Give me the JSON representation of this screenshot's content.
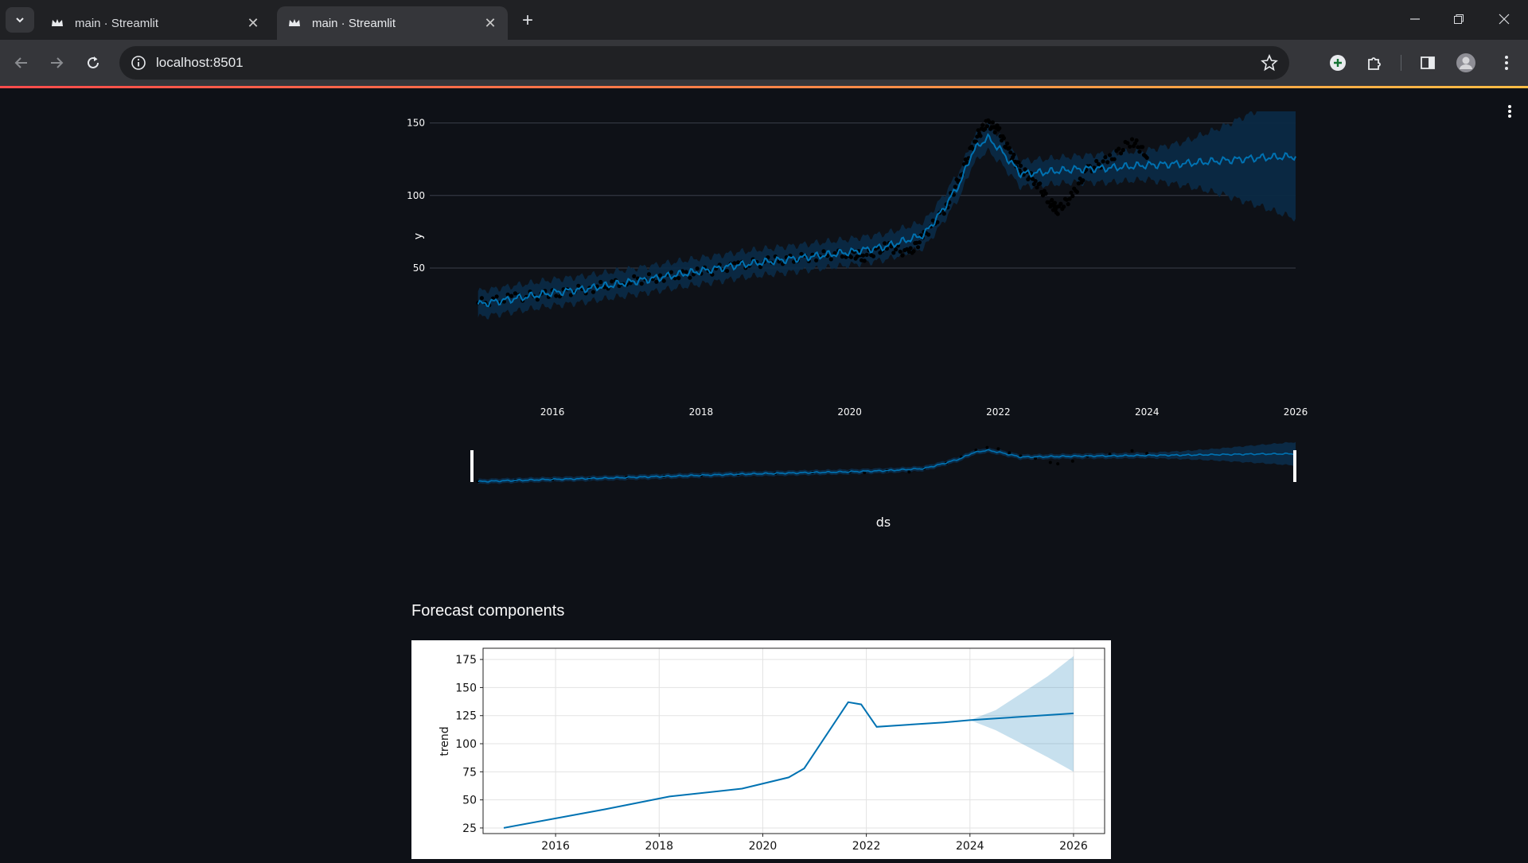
{
  "browser": {
    "tabs": [
      {
        "title": "main · Streamlit",
        "active": false
      },
      {
        "title": "main · Streamlit",
        "active": true
      }
    ],
    "url": "localhost:8501"
  },
  "colors": {
    "app_bg": "#0e1117",
    "forecast_line": "#0072b2",
    "uncertainty_band": "#0b2a45",
    "decoration_gradient": [
      "#ff4b4b",
      "#ffbd45"
    ]
  },
  "forecast_plot": {
    "ylabel": "y",
    "xlabel": "ds",
    "yticks": [
      "50",
      "100",
      "150"
    ],
    "xticks": [
      "2016",
      "2018",
      "2020",
      "2022",
      "2024",
      "2026"
    ]
  },
  "components": {
    "subheader": "Forecast components",
    "ylabel": "trend",
    "yticks": [
      "25",
      "50",
      "75",
      "100",
      "125",
      "150",
      "175"
    ],
    "xticks": [
      "2016",
      "2018",
      "2020",
      "2022",
      "2024",
      "2026"
    ]
  },
  "chart_data": [
    {
      "type": "line",
      "xlabel": "ds",
      "ylabel": "y",
      "ylim": [
        10,
        158
      ],
      "xlim": [
        2015.0,
        2026.0
      ],
      "grid": true,
      "series": [
        {
          "values_x": [
            2015.0,
            2015.5,
            2016.0,
            2016.5,
            2017.0,
            2017.5,
            2018.0,
            2018.5,
            2019.0,
            2019.5,
            2020.0,
            2020.5,
            2021.0,
            2021.25,
            2021.5,
            2021.65,
            2021.85,
            2022.0,
            2022.3,
            2022.6,
            2023.0,
            2023.5,
            2024.0,
            2024.5,
            2025.0,
            2025.5,
            2026.0
          ],
          "values_y": [
            25,
            29,
            33,
            36,
            40,
            44,
            48,
            52,
            55,
            58,
            61,
            65,
            73,
            90,
            110,
            130,
            140,
            133,
            115,
            116,
            118,
            119,
            121,
            122,
            124,
            126,
            127
          ]
        }
      ],
      "uncertainty_halfwidth": [
        9,
        9,
        9,
        9,
        9,
        9,
        9,
        9,
        9,
        9,
        9,
        9,
        9,
        9,
        9,
        9,
        9,
        9,
        9,
        9,
        9,
        10,
        10,
        15,
        23,
        33,
        43
      ],
      "observed_points": [
        [
          2015.0,
          26
        ],
        [
          2015.5,
          30
        ],
        [
          2016.0,
          32
        ],
        [
          2016.5,
          36
        ],
        [
          2017.0,
          41
        ],
        [
          2017.5,
          44
        ],
        [
          2018.0,
          47
        ],
        [
          2018.5,
          52
        ],
        [
          2019.0,
          55
        ],
        [
          2019.5,
          58
        ],
        [
          2020.0,
          60
        ],
        [
          2020.2,
          58
        ],
        [
          2020.5,
          65
        ],
        [
          2020.8,
          60
        ],
        [
          2021.0,
          72
        ],
        [
          2021.3,
          92
        ],
        [
          2021.5,
          115
        ],
        [
          2021.7,
          140
        ],
        [
          2021.85,
          150
        ],
        [
          2022.0,
          145
        ],
        [
          2022.15,
          130
        ],
        [
          2022.3,
          118
        ],
        [
          2022.5,
          110
        ],
        [
          2022.7,
          95
        ],
        [
          2022.8,
          90
        ],
        [
          2023.0,
          100
        ],
        [
          2023.2,
          118
        ],
        [
          2023.5,
          125
        ],
        [
          2023.8,
          138
        ],
        [
          2024.0,
          128
        ]
      ]
    },
    {
      "type": "line",
      "ylabel": "trend",
      "ylim": [
        20,
        185
      ],
      "xlim": [
        2014.6,
        2026.6
      ],
      "grid": true,
      "series": [
        {
          "values_x": [
            2015.0,
            2017.0,
            2018.2,
            2019.6,
            2020.5,
            2020.8,
            2021.65,
            2021.9,
            2022.2,
            2023.5,
            2024.0,
            2026.0
          ],
          "values_y": [
            25,
            42,
            53,
            60,
            70,
            78,
            137,
            135,
            115,
            119,
            121,
            127
          ]
        }
      ],
      "band_x": [
        2024.0,
        2024.5,
        2025.0,
        2025.5,
        2026.0
      ],
      "band_upper": [
        121,
        130,
        145,
        160,
        178
      ],
      "band_lower": [
        121,
        112,
        100,
        88,
        75
      ]
    }
  ]
}
